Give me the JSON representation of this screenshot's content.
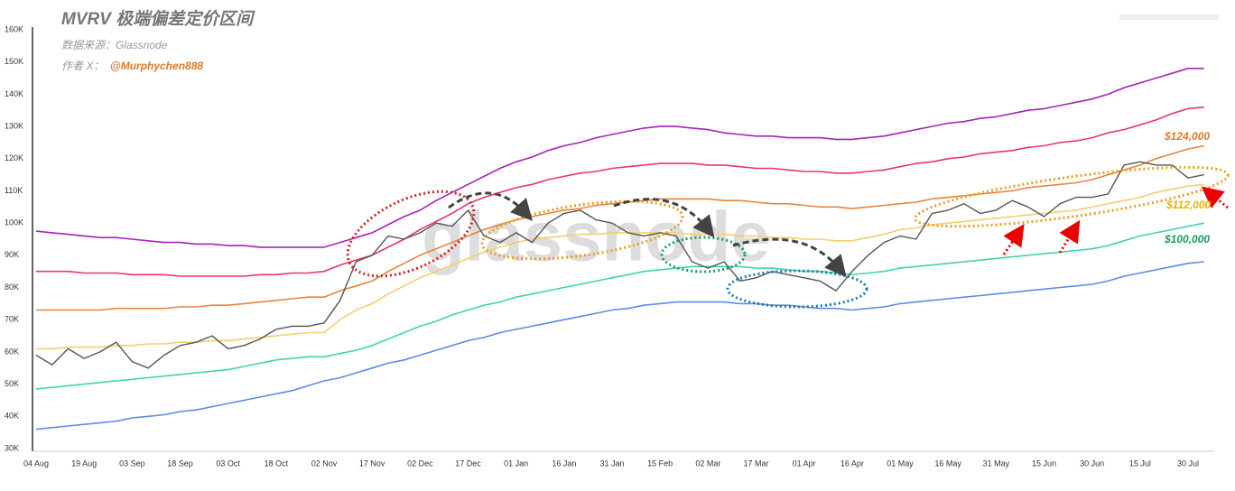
{
  "chart_data": {
    "type": "line",
    "title": "MVRV 极端偏差定价区间",
    "subtitle": "数据来源：Glassnode",
    "author_label": "作者 X：",
    "author": "@Murphychen888",
    "watermark": "glassnode",
    "annotations": [
      {
        "text": "$124,000",
        "color": "#e07a28"
      },
      {
        "text": "$112,000",
        "color": "#e6b400"
      },
      {
        "text": "$100,000",
        "color": "#1a9e5a"
      }
    ],
    "categories": [
      "04 Aug",
      null,
      null,
      "19 Aug",
      null,
      null,
      "03 Sep",
      null,
      null,
      "18 Sep",
      null,
      null,
      "03 Oct",
      null,
      null,
      "18 Oct",
      null,
      null,
      "02 Nov",
      null,
      null,
      "17 Nov",
      null,
      null,
      "02 Dec",
      null,
      null,
      "17 Dec",
      null,
      null,
      "01 Jan",
      null,
      null,
      "16 Jan",
      null,
      null,
      "31 Jan",
      null,
      null,
      "15 Feb",
      null,
      null,
      "02 Mar",
      null,
      null,
      "17 Mar",
      null,
      null,
      "01 Apr",
      null,
      null,
      "16 Apr",
      null,
      null,
      "01 May",
      null,
      null,
      "16 May",
      null,
      null,
      "31 May",
      null,
      null,
      "15 Jun",
      null,
      null,
      "30 Jun",
      null,
      null,
      "15 Jul",
      null,
      null,
      "30 Jul",
      null
    ],
    "series": [
      {
        "color": "#a424b4",
        "values": [
          97.5,
          97,
          96.5,
          96,
          95.5,
          95.5,
          95,
          94.5,
          94,
          94,
          93.5,
          93.5,
          93,
          93,
          92.5,
          92.5,
          92.5,
          92.5,
          92.5,
          94,
          95.5,
          97,
          99.5,
          102,
          104,
          107,
          109.5,
          112,
          114.5,
          117,
          119,
          120.5,
          122.5,
          124,
          125,
          126.5,
          127.5,
          128.5,
          129.5,
          130,
          130,
          129.5,
          129,
          128,
          127.5,
          127,
          127,
          126.5,
          126.5,
          126.5,
          126,
          126,
          126.5,
          127,
          128,
          129,
          130,
          131,
          131.5,
          132.5,
          133,
          134,
          135,
          135.5,
          136.5,
          137.5,
          138.5,
          140,
          142,
          143.5,
          145,
          146.5,
          148,
          148
        ]
      },
      {
        "color": "#e8356a",
        "values": [
          85,
          85,
          85,
          84.5,
          84.5,
          84.5,
          84,
          84,
          84,
          83.5,
          83.5,
          83.5,
          83.5,
          83.5,
          84,
          84,
          84.5,
          84.5,
          85,
          87,
          88.5,
          90,
          92.5,
          95,
          98,
          100.5,
          103,
          106,
          108,
          109.5,
          111,
          112,
          113.5,
          114.5,
          115.5,
          116,
          117,
          117.5,
          118,
          118.5,
          118.5,
          118.5,
          118,
          118,
          117.5,
          117,
          117,
          116.5,
          116,
          116,
          115.5,
          115.5,
          116,
          116.5,
          117.5,
          118.5,
          119,
          120,
          120.5,
          121.5,
          122,
          122.5,
          123.5,
          124,
          125,
          125.5,
          126.5,
          128,
          129,
          130.5,
          132,
          134,
          135.5,
          136
        ]
      },
      {
        "color": "#e8843c",
        "values": [
          73,
          73,
          73,
          73,
          73,
          73.5,
          73.5,
          73.5,
          73.5,
          74,
          74,
          74.5,
          74.5,
          75,
          75.5,
          76,
          76.5,
          77,
          77,
          79,
          80.5,
          82,
          85,
          87.5,
          90,
          92,
          94,
          96,
          98,
          99.5,
          101,
          102,
          103,
          104,
          104.5,
          105.5,
          106,
          106.5,
          107,
          107.5,
          107.5,
          107.5,
          107.5,
          107,
          107,
          106.5,
          106,
          106,
          105.5,
          105,
          105,
          104.5,
          105,
          105.5,
          106,
          106.5,
          107.5,
          108,
          108.5,
          109,
          109.5,
          110,
          111,
          111.5,
          112,
          112.5,
          113.5,
          115,
          116.5,
          118,
          120,
          121.5,
          123,
          124
        ]
      },
      {
        "color": "#f7cd70",
        "values": [
          61,
          61,
          61.5,
          61.5,
          61.5,
          62,
          62,
          62.5,
          62.5,
          63,
          63,
          63.5,
          63.5,
          64,
          64.5,
          65,
          65.5,
          66,
          66,
          70,
          73,
          75,
          78,
          80.5,
          83,
          85,
          87,
          89,
          91,
          92.5,
          94,
          95,
          95.5,
          96,
          96.5,
          96.5,
          97,
          97,
          97,
          97,
          97,
          96.5,
          96.5,
          96.5,
          96,
          96,
          95.5,
          95.5,
          95,
          95,
          94.5,
          94.5,
          95.5,
          96.5,
          98,
          98.5,
          99.5,
          100,
          100.5,
          101,
          101.5,
          102,
          102.5,
          103,
          103.5,
          104,
          105,
          106,
          107,
          108,
          109.5,
          110.5,
          111.5,
          112
        ]
      },
      {
        "color": "#3fd4ae",
        "values": [
          48.5,
          49,
          49.5,
          50,
          50.5,
          51,
          51.5,
          52,
          52.5,
          53,
          53.5,
          54,
          54.5,
          55.5,
          56.5,
          57.5,
          58,
          58.5,
          58.5,
          59.5,
          60.5,
          62,
          64,
          66,
          68,
          69.5,
          71.5,
          73,
          74.5,
          75.5,
          77,
          78,
          79,
          80,
          81,
          82,
          83,
          84,
          85,
          85.5,
          86,
          86.5,
          86.5,
          86.5,
          86.5,
          86,
          86,
          85.5,
          85,
          85,
          84.5,
          84,
          84.5,
          85,
          86,
          86.5,
          87,
          87.5,
          88,
          88.5,
          89,
          89.5,
          90,
          90.5,
          91,
          91.5,
          92,
          93,
          94.5,
          96,
          97,
          98,
          99,
          100
        ]
      },
      {
        "color": "#5b8ee0",
        "values": [
          36,
          36.5,
          37,
          37.5,
          38,
          38.5,
          39.5,
          40,
          40.5,
          41.5,
          42,
          43,
          44,
          45,
          46,
          47,
          48,
          49.5,
          51,
          52,
          53.5,
          55,
          56.5,
          57.5,
          59,
          60.5,
          62,
          63.5,
          64.5,
          66,
          67,
          68,
          69,
          70,
          71,
          72,
          73,
          73.5,
          74.5,
          75,
          75.5,
          75.5,
          75.5,
          75.5,
          75,
          75,
          74.5,
          74.5,
          74,
          73.5,
          73.5,
          73,
          73.5,
          74,
          75,
          75.5,
          76,
          76.5,
          77,
          77.5,
          78,
          78.5,
          79,
          79.5,
          80,
          80.5,
          81,
          82,
          83.5,
          84.5,
          85.5,
          86.5,
          87.5,
          88
        ]
      },
      {
        "color": "#555555",
        "values": [
          59,
          56,
          61,
          58,
          60,
          63,
          57,
          55,
          59,
          62,
          63,
          65,
          61,
          62,
          64,
          67,
          68,
          68,
          69,
          76,
          88,
          90,
          96,
          95,
          97,
          100,
          99,
          104,
          96,
          94,
          97,
          94,
          100,
          103,
          104,
          101,
          100,
          97,
          96,
          97,
          96,
          88,
          86,
          88,
          82,
          83,
          85,
          84,
          83,
          82,
          79,
          85,
          90,
          94,
          96,
          95,
          103,
          104,
          106,
          103,
          104,
          107,
          105,
          102,
          106,
          108,
          108,
          109,
          118,
          119,
          118,
          118,
          114,
          115
        ]
      }
    ],
    "ylim": [
      30,
      160
    ],
    "yticks": [
      {
        "value": 30,
        "label": "30K"
      },
      {
        "value": 40,
        "label": "40K"
      },
      {
        "value": 50,
        "label": "50K"
      },
      {
        "value": 60,
        "label": "60K"
      },
      {
        "value": 70,
        "label": "70K"
      },
      {
        "value": 80,
        "label": "80K"
      },
      {
        "value": 90,
        "label": "90K"
      },
      {
        "value": 100,
        "label": "100K"
      },
      {
        "value": 110,
        "label": "110K"
      },
      {
        "value": 120,
        "label": "120K"
      },
      {
        "value": 130,
        "label": "130K"
      },
      {
        "value": 140,
        "label": "140K"
      },
      {
        "value": 150,
        "label": "150K"
      },
      {
        "value": 160,
        "label": "160K"
      }
    ],
    "grid": false
  }
}
